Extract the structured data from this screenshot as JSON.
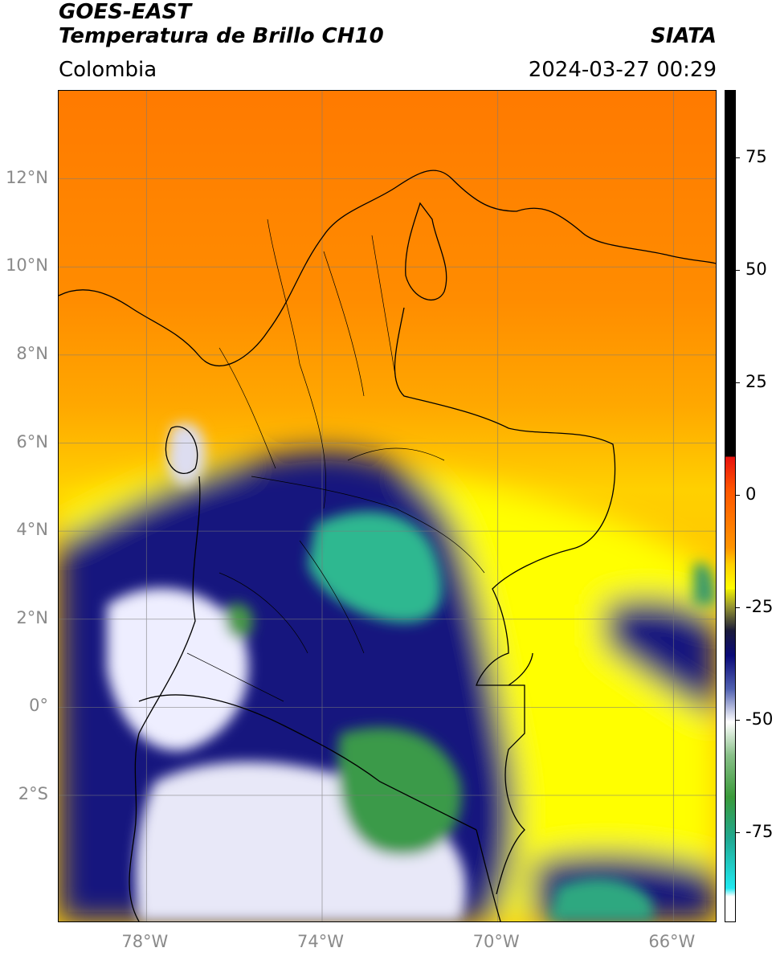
{
  "header": {
    "satellite": "GOES-EAST",
    "product": "Temperatura de Brillo CH10",
    "region": "Colombia",
    "source": "SIATA",
    "timestamp": "2024-03-27 00:29"
  },
  "map": {
    "lat_ticks": [
      "12°N",
      "10°N",
      "8°N",
      "6°N",
      "4°N",
      "2°N",
      "0°",
      "2°S"
    ],
    "lon_ticks": [
      "78°W",
      "74°W",
      "70°W",
      "66°W"
    ],
    "lat_values": [
      12,
      10,
      8,
      6,
      4,
      2,
      0,
      -2
    ],
    "lon_values": [
      -78,
      -74,
      -70,
      -66
    ],
    "extent": {
      "lon_min": -80,
      "lon_max": -65,
      "lat_min": -4.9,
      "lat_max": 14
    }
  },
  "colorbar": {
    "tick_labels": [
      "75",
      "50",
      "25",
      "0",
      "-25",
      "-50",
      "-75"
    ],
    "tick_values": [
      75,
      50,
      25,
      0,
      -25,
      -50,
      -75
    ],
    "range": [
      -95,
      90
    ],
    "colors": {
      "black": "#000000",
      "red": "#e8120e",
      "orange": "#ff8c00",
      "yellow": "#ffff00",
      "navy": "#0a0a78",
      "white": "#ffffff",
      "green": "#3a9a3a",
      "teal": "#20c8b0",
      "cyan": "#20e8f0"
    }
  }
}
